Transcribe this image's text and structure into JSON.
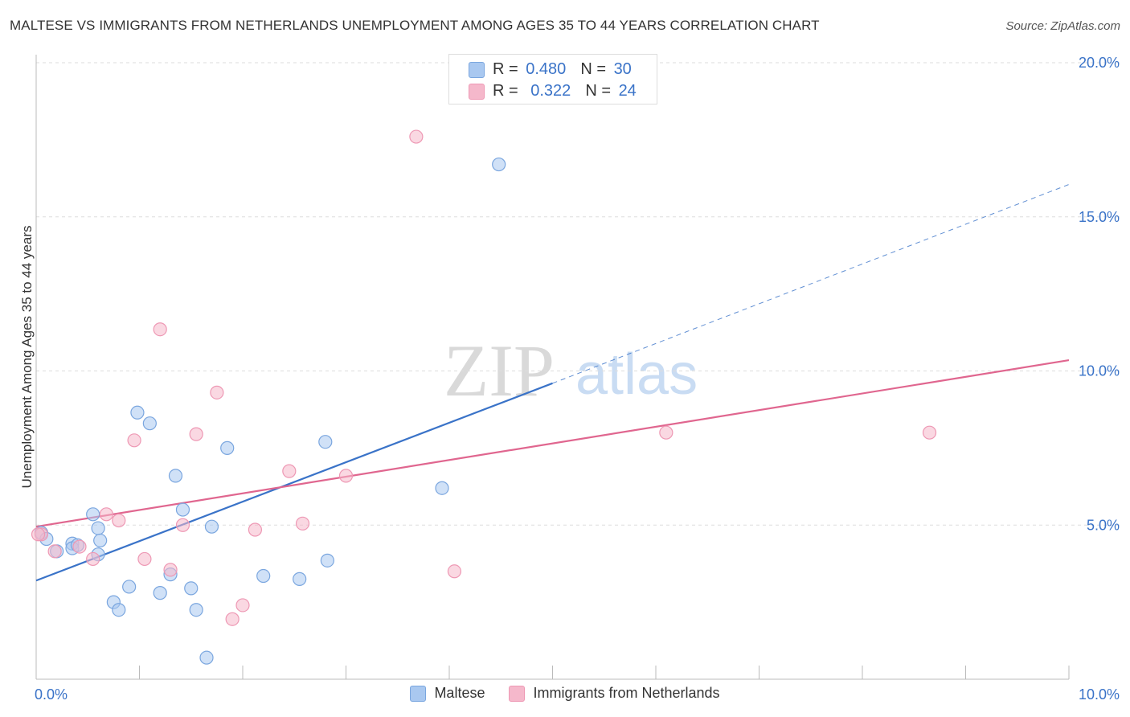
{
  "title": "MALTESE VS IMMIGRANTS FROM NETHERLANDS UNEMPLOYMENT AMONG AGES 35 TO 44 YEARS CORRELATION CHART",
  "source": "Source: ZipAtlas.com",
  "watermark": {
    "zip": "ZIP",
    "atlas": "atlas"
  },
  "stats": [
    {
      "r_label": "R = ",
      "r_value": "0.480",
      "n_label": "N = ",
      "n_value": "30",
      "color": "#a9c8f0"
    },
    {
      "r_label": "R = ",
      "r_value": "0.322",
      "n_label": "N = ",
      "n_value": "24",
      "color": "#f5b8cb"
    }
  ],
  "legend": [
    {
      "label": "Maltese",
      "color": "#a9c8f0"
    },
    {
      "label": "Immigrants from Netherlands",
      "color": "#f5b8cb"
    }
  ],
  "chart_data": {
    "type": "scatter",
    "title": "MALTESE VS IMMIGRANTS FROM NETHERLANDS UNEMPLOYMENT AMONG AGES 35 TO 44 YEARS CORRELATION CHART",
    "xlabel": "",
    "ylabel": "Unemployment Among Ages 35 to 44 years",
    "xlim": [
      0,
      10
    ],
    "ylim": [
      0,
      20
    ],
    "x_tick_labels": [
      {
        "value": 0,
        "label": "0.0%"
      },
      {
        "value": 10,
        "label": "10.0%"
      }
    ],
    "y_tick_labels": [
      {
        "value": 5,
        "label": "5.0%"
      },
      {
        "value": 10,
        "label": "10.0%"
      },
      {
        "value": 15,
        "label": "15.0%"
      },
      {
        "value": 20,
        "label": "20.0%"
      }
    ],
    "y_gridlines": [
      5,
      10,
      15,
      20
    ],
    "grid": true,
    "legend_position": "bottom",
    "series": [
      {
        "name": "Maltese",
        "color": "#3a73c8",
        "fill": "#a9c8f0",
        "points": [
          [
            0.05,
            4.75
          ],
          [
            0.1,
            4.55
          ],
          [
            0.2,
            4.15
          ],
          [
            0.35,
            4.4
          ],
          [
            0.35,
            4.25
          ],
          [
            0.4,
            4.35
          ],
          [
            0.6,
            4.9
          ],
          [
            0.55,
            5.35
          ],
          [
            0.62,
            4.5
          ],
          [
            0.6,
            4.05
          ],
          [
            0.75,
            2.5
          ],
          [
            0.8,
            2.25
          ],
          [
            0.9,
            3.0
          ],
          [
            0.98,
            8.65
          ],
          [
            1.1,
            8.3
          ],
          [
            1.2,
            2.8
          ],
          [
            1.3,
            3.4
          ],
          [
            1.35,
            6.6
          ],
          [
            1.42,
            5.5
          ],
          [
            1.5,
            2.95
          ],
          [
            1.55,
            2.25
          ],
          [
            1.65,
            0.7
          ],
          [
            1.7,
            4.95
          ],
          [
            1.85,
            7.5
          ],
          [
            2.2,
            3.35
          ],
          [
            2.55,
            3.25
          ],
          [
            2.8,
            7.7
          ],
          [
            2.82,
            3.85
          ],
          [
            3.93,
            6.2
          ],
          [
            4.48,
            16.7
          ]
        ],
        "trend_solid": [
          [
            0.0,
            3.2
          ],
          [
            5.0,
            9.6
          ]
        ],
        "trend_dashed": [
          [
            5.0,
            9.6
          ],
          [
            10.0,
            16.05
          ]
        ]
      },
      {
        "name": "Immigrants from Netherlands",
        "color": "#e0668f",
        "fill": "#f5b8cb",
        "points": [
          [
            0.05,
            4.7
          ],
          [
            0.18,
            4.15
          ],
          [
            0.42,
            4.3
          ],
          [
            0.55,
            3.9
          ],
          [
            0.68,
            5.35
          ],
          [
            0.8,
            5.15
          ],
          [
            0.95,
            7.75
          ],
          [
            1.05,
            3.9
          ],
          [
            1.2,
            11.35
          ],
          [
            1.3,
            3.55
          ],
          [
            1.42,
            5.0
          ],
          [
            1.55,
            7.95
          ],
          [
            1.75,
            9.3
          ],
          [
            1.9,
            1.95
          ],
          [
            2.0,
            2.4
          ],
          [
            2.12,
            4.85
          ],
          [
            2.45,
            6.75
          ],
          [
            2.58,
            5.05
          ],
          [
            3.0,
            6.6
          ],
          [
            3.68,
            17.6
          ],
          [
            4.05,
            3.5
          ],
          [
            6.1,
            8.0
          ],
          [
            8.65,
            8.0
          ],
          [
            0.02,
            4.7
          ]
        ],
        "trend_solid": [
          [
            0.0,
            4.95
          ],
          [
            10.0,
            10.35
          ]
        ]
      }
    ]
  }
}
